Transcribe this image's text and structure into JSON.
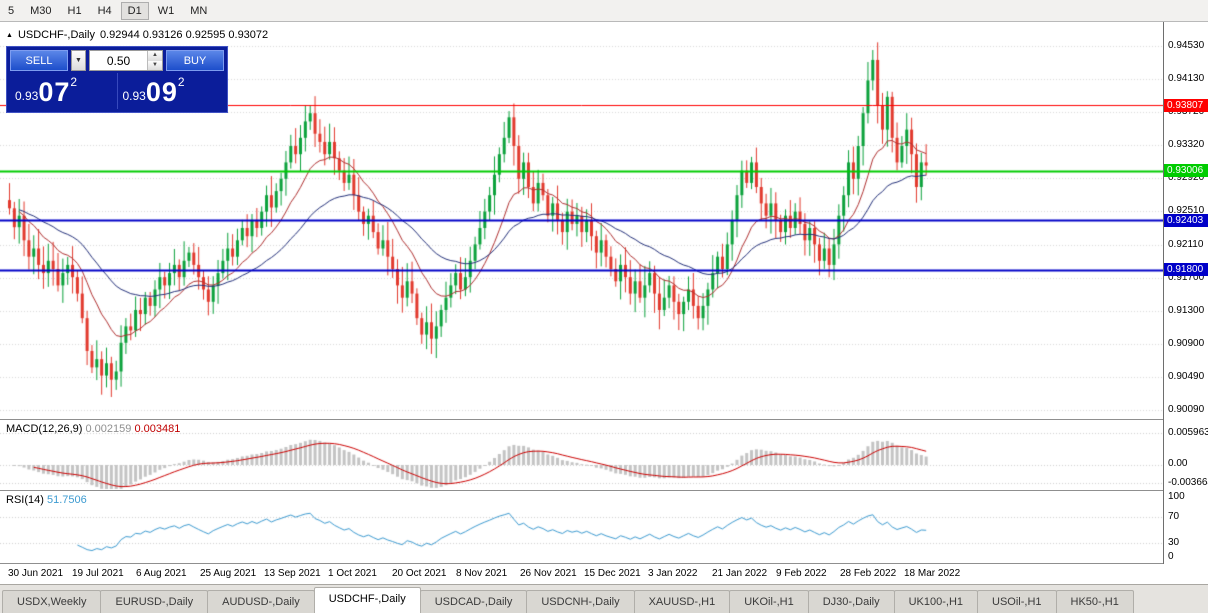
{
  "colors": {
    "up": "#0ca23c",
    "down": "#e23a2e",
    "ma_fast": "#b03030",
    "ma_slow": "#23307a",
    "macd_hist": "#c4c4c4",
    "macd_signal": "#cc0000",
    "rsi_line": "#3d9bd1",
    "grid": "#d9d9d9",
    "indicator_grid": "#cfcfcf",
    "chart_bg": "#ffffff"
  },
  "toolbar": {
    "timeframes": [
      "5",
      "M30",
      "H1",
      "H4",
      "D1",
      "W1",
      "MN"
    ],
    "active": "D1"
  },
  "icons": {
    "panel_toggle": "▲",
    "dropdown": "▼",
    "spin_up": "▲",
    "spin_down": "▼"
  },
  "chart": {
    "pane_title": "USDCHF-,Daily",
    "ohlc_text": "0.92944 0.93126 0.92595 0.93072"
  },
  "trade_panel": {
    "sell_label": "SELL",
    "buy_label": "BUY",
    "lot_size": "0.50",
    "sell_price_small": "0.93",
    "sell_price_big": "07",
    "sell_price_sup": "2",
    "buy_price_small": "0.93",
    "buy_price_big": "09",
    "buy_price_sup": "2"
  },
  "price_axis": {
    "labels": [
      "0.94530",
      "0.94130",
      "0.93720",
      "0.93320",
      "0.92920",
      "0.92510",
      "0.92110",
      "0.91700",
      "0.91300",
      "0.90900",
      "0.90490",
      "0.90090"
    ]
  },
  "levels": [
    {
      "price": 0.93807,
      "label": "0.93807",
      "color": "#ff0000",
      "width": 1
    },
    {
      "price": 0.93006,
      "label": "0.93006",
      "color": "#00cc00",
      "width": 2
    },
    {
      "price": 0.92403,
      "label": "0.92403",
      "color": "#0000c8",
      "width": 2
    },
    {
      "price": 0.918,
      "label": "0.91800",
      "color": "#0000c8",
      "width": 2
    }
  ],
  "macd": {
    "label": "MACD(12,26,9)",
    "value_main": "0.002159",
    "value_signal": "0.003481",
    "axis": [
      "0.005963",
      "0.00",
      "-0.003664"
    ]
  },
  "rsi": {
    "label": "RSI(14)",
    "value": "51.7506",
    "axis": [
      "100",
      "70",
      "30",
      "0"
    ]
  },
  "date_axis": [
    "30 Jun 2021",
    "19 Jul 2021",
    "6 Aug 2021",
    "25 Aug 2021",
    "13 Sep 2021",
    "1 Oct 2021",
    "20 Oct 2021",
    "8 Nov 2021",
    "26 Nov 2021",
    "15 Dec 2021",
    "3 Jan 2022",
    "21 Jan 2022",
    "9 Feb 2022",
    "28 Feb 2022",
    "18 Mar 2022"
  ],
  "tabs": {
    "items": [
      "USDX,Weekly",
      "EURUSD-,Daily",
      "AUDUSD-,Daily",
      "USDCHF-,Daily",
      "USDCAD-,Daily",
      "USDCNH-,Daily",
      "XAUUSD-,H1",
      "UKOil-,H1",
      "DJ30-,Daily",
      "UK100-,H1",
      "USOil-,H1",
      "HK50-,H1"
    ],
    "active": "USDCHF-,Daily"
  },
  "chart_data": {
    "type": "candlestick",
    "symbol": "USDCHF-",
    "timeframe": "Daily",
    "ohlc_current": {
      "open": 0.92944,
      "high": 0.93126,
      "low": 0.92595,
      "close": 0.93072
    },
    "y_range": {
      "min": 0.9009,
      "max": 0.9453
    },
    "x_range": [
      "30 Jun 2021",
      "18 Mar 2022"
    ],
    "levels": [
      0.93807,
      0.93006,
      0.92403,
      0.918
    ],
    "moving_averages": [
      {
        "type": "ema",
        "period": 13,
        "color": "#b03030"
      },
      {
        "type": "ema",
        "period": 34,
        "color": "#23307a"
      }
    ],
    "closes": [
      0.9255,
      0.9232,
      0.9246,
      0.9216,
      0.9196,
      0.9206,
      0.9186,
      0.9176,
      0.9191,
      0.9181,
      0.9161,
      0.9176,
      0.9186,
      0.9171,
      0.9151,
      0.9121,
      0.9081,
      0.9061,
      0.9071,
      0.9051,
      0.9066,
      0.9046,
      0.9056,
      0.9091,
      0.9111,
      0.9106,
      0.9131,
      0.9126,
      0.9146,
      0.9136,
      0.9156,
      0.9171,
      0.9161,
      0.9176,
      0.9186,
      0.9171,
      0.9191,
      0.9201,
      0.9186,
      0.9171,
      0.9156,
      0.9141,
      0.9161,
      0.9176,
      0.9191,
      0.9206,
      0.9196,
      0.9216,
      0.9231,
      0.9221,
      0.9241,
      0.9231,
      0.9251,
      0.9271,
      0.9256,
      0.9276,
      0.9291,
      0.9311,
      0.9331,
      0.9321,
      0.9341,
      0.9361,
      0.9371,
      0.9346,
      0.9336,
      0.9321,
      0.9336,
      0.9316,
      0.9301,
      0.9286,
      0.9296,
      0.9271,
      0.9251,
      0.9236,
      0.9246,
      0.9226,
      0.9206,
      0.9216,
      0.9196,
      0.9181,
      0.9161,
      0.9146,
      0.9166,
      0.9151,
      0.9121,
      0.9101,
      0.9116,
      0.9096,
      0.9111,
      0.9131,
      0.9146,
      0.9161,
      0.9176,
      0.9156,
      0.9171,
      0.9191,
      0.9211,
      0.9231,
      0.9251,
      0.9271,
      0.9296,
      0.9321,
      0.9341,
      0.9366,
      0.9331,
      0.9291,
      0.9311,
      0.9281,
      0.9261,
      0.9286,
      0.9271,
      0.9246,
      0.9261,
      0.9241,
      0.9226,
      0.9251,
      0.9236,
      0.9246,
      0.9226,
      0.9241,
      0.9221,
      0.9201,
      0.9216,
      0.9196,
      0.9181,
      0.9166,
      0.9186,
      0.9171,
      0.9151,
      0.9166,
      0.9146,
      0.9161,
      0.9176,
      0.9151,
      0.9131,
      0.9146,
      0.9161,
      0.9141,
      0.9126,
      0.9141,
      0.9156,
      0.9136,
      0.9121,
      0.9136,
      0.9156,
      0.9176,
      0.9196,
      0.9181,
      0.9211,
      0.9241,
      0.9271,
      0.9301,
      0.9286,
      0.9311,
      0.9281,
      0.9261,
      0.9246,
      0.9261,
      0.9241,
      0.9226,
      0.9246,
      0.9231,
      0.9251,
      0.9236,
      0.9216,
      0.9231,
      0.9211,
      0.9191,
      0.9206,
      0.9186,
      0.9211,
      0.9246,
      0.9271,
      0.9311,
      0.9291,
      0.9331,
      0.9371,
      0.9411,
      0.9436,
      0.9381,
      0.9351,
      0.9391,
      0.9341,
      0.9311,
      0.9331,
      0.9351,
      0.9321,
      0.9281,
      0.9311,
      0.93072
    ],
    "macd": {
      "fast": 12,
      "slow": 26,
      "signal": 9,
      "current_main": 0.002159,
      "current_signal": 0.003481,
      "axis_values": [
        0.005963,
        0.0,
        -0.003664
      ]
    },
    "rsi": {
      "period": 14,
      "current": 51.7506,
      "bands": [
        30,
        70
      ],
      "range": [
        0,
        100
      ]
    }
  }
}
